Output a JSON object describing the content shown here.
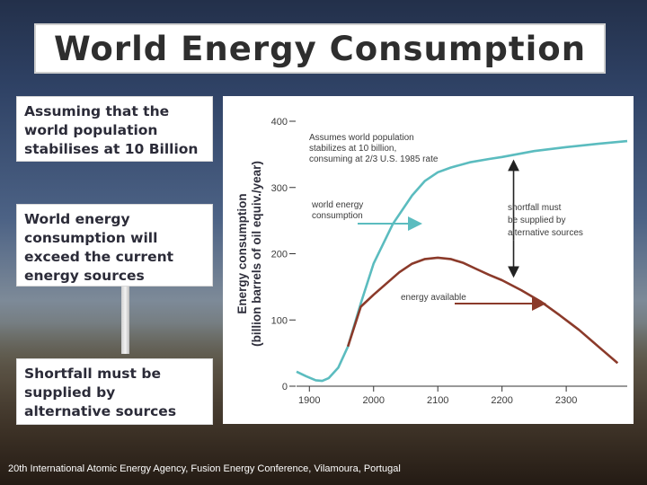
{
  "slide": {
    "title": "World Energy Consumption",
    "boxes": [
      "Assuming that the world population stabilises at 10 Billion",
      "World energy consumption will exceed the current energy sources",
      "Shortfall must be supplied by alternative sources"
    ],
    "footer": "20th International Atomic Energy Agency, Fusion Energy Conference, Vilamoura, Portugal"
  },
  "colors": {
    "consumption": "#5bbcbf",
    "available": "#8b3a2a",
    "axis": "#333333",
    "text": "#3b3b3b"
  },
  "chart_data": {
    "type": "line",
    "title": "",
    "xlabel": "",
    "ylabel": "Energy consumption (billion barrels of oil equiv./year)",
    "ylabel_lines": [
      "Energy consumption",
      "(billion barrels of oil equiv./year)"
    ],
    "xlim": [
      1880,
      2395
    ],
    "ylim": [
      0,
      400
    ],
    "x_ticks": [
      1900,
      2000,
      2100,
      2200,
      2300
    ],
    "y_ticks": [
      0,
      100,
      200,
      300,
      400
    ],
    "series": [
      {
        "name": "world energy consumption",
        "label_lines": [
          "world energy",
          "consumption"
        ],
        "x": [
          1880,
          1895,
          1910,
          1920,
          1930,
          1945,
          1960,
          1980,
          2000,
          2030,
          2060,
          2080,
          2100,
          2120,
          2150,
          2180,
          2200,
          2250,
          2300,
          2350,
          2395
        ],
        "y": [
          22,
          15,
          9,
          8,
          12,
          28,
          60,
          125,
          185,
          245,
          288,
          310,
          323,
          330,
          338,
          343,
          346,
          355,
          361,
          366,
          370
        ]
      },
      {
        "name": "energy available",
        "label_lines": [
          "energy available"
        ],
        "x": [
          1960,
          1980,
          2000,
          2020,
          2040,
          2060,
          2080,
          2100,
          2120,
          2140,
          2160,
          2180,
          2200,
          2230,
          2260,
          2290,
          2320,
          2350,
          2380
        ],
        "y": [
          60,
          120,
          138,
          155,
          172,
          185,
          192,
          194,
          192,
          186,
          177,
          168,
          160,
          145,
          128,
          107,
          85,
          60,
          35
        ]
      }
    ],
    "annotations": {
      "assumption": [
        "Assumes world population",
        "stabilizes at 10 billion,",
        "consuming at 2/3 U.S. 1985 rate"
      ],
      "shortfall": [
        "shortfall must",
        "be supplied by",
        "alternative sources"
      ]
    }
  }
}
